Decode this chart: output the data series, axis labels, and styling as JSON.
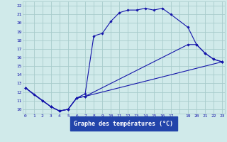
{
  "xlabel": "Graphe des températures (°C)",
  "background_color": "#d0eaea",
  "grid_color": "#a8cccc",
  "line_color": "#1414aa",
  "xlim": [
    -0.3,
    23.3
  ],
  "ylim": [
    9.5,
    22.5
  ],
  "xticks": [
    0,
    1,
    2,
    3,
    4,
    5,
    6,
    7,
    8,
    9,
    10,
    11,
    12,
    13,
    14,
    15,
    16,
    17,
    18,
    19,
    20,
    21,
    22,
    23
  ],
  "yticks": [
    10,
    11,
    12,
    13,
    14,
    15,
    16,
    17,
    18,
    19,
    20,
    21,
    22
  ],
  "line1_x": [
    0,
    1,
    2,
    3,
    4,
    5,
    6,
    7,
    8,
    9,
    10,
    11,
    12,
    13,
    14,
    15,
    16,
    17,
    19,
    20,
    21,
    22,
    23
  ],
  "line1_y": [
    12.5,
    11.7,
    11.0,
    10.3,
    9.8,
    10.0,
    11.3,
    11.8,
    18.5,
    18.8,
    20.2,
    21.2,
    21.5,
    21.5,
    21.7,
    21.5,
    21.7,
    21.0,
    19.5,
    17.5,
    16.5,
    15.8,
    15.5
  ],
  "line2_x": [
    0,
    2,
    3,
    4,
    5,
    6,
    7,
    19,
    20,
    21,
    22,
    23
  ],
  "line2_y": [
    12.5,
    11.0,
    10.3,
    9.8,
    10.0,
    11.3,
    11.5,
    17.5,
    17.5,
    16.5,
    15.8,
    15.5
  ],
  "line3_x": [
    0,
    3,
    4,
    5,
    6,
    7,
    23
  ],
  "line3_y": [
    12.5,
    10.3,
    9.8,
    10.0,
    11.3,
    11.5,
    15.5
  ],
  "xticklabels": [
    "0",
    "1",
    "2",
    "3",
    "4",
    "5",
    "6",
    "7",
    "8",
    "9",
    "10",
    "11",
    "12",
    "13",
    "14",
    "15",
    "16",
    "17",
    "",
    "19",
    "20",
    "21",
    "22",
    "23"
  ]
}
